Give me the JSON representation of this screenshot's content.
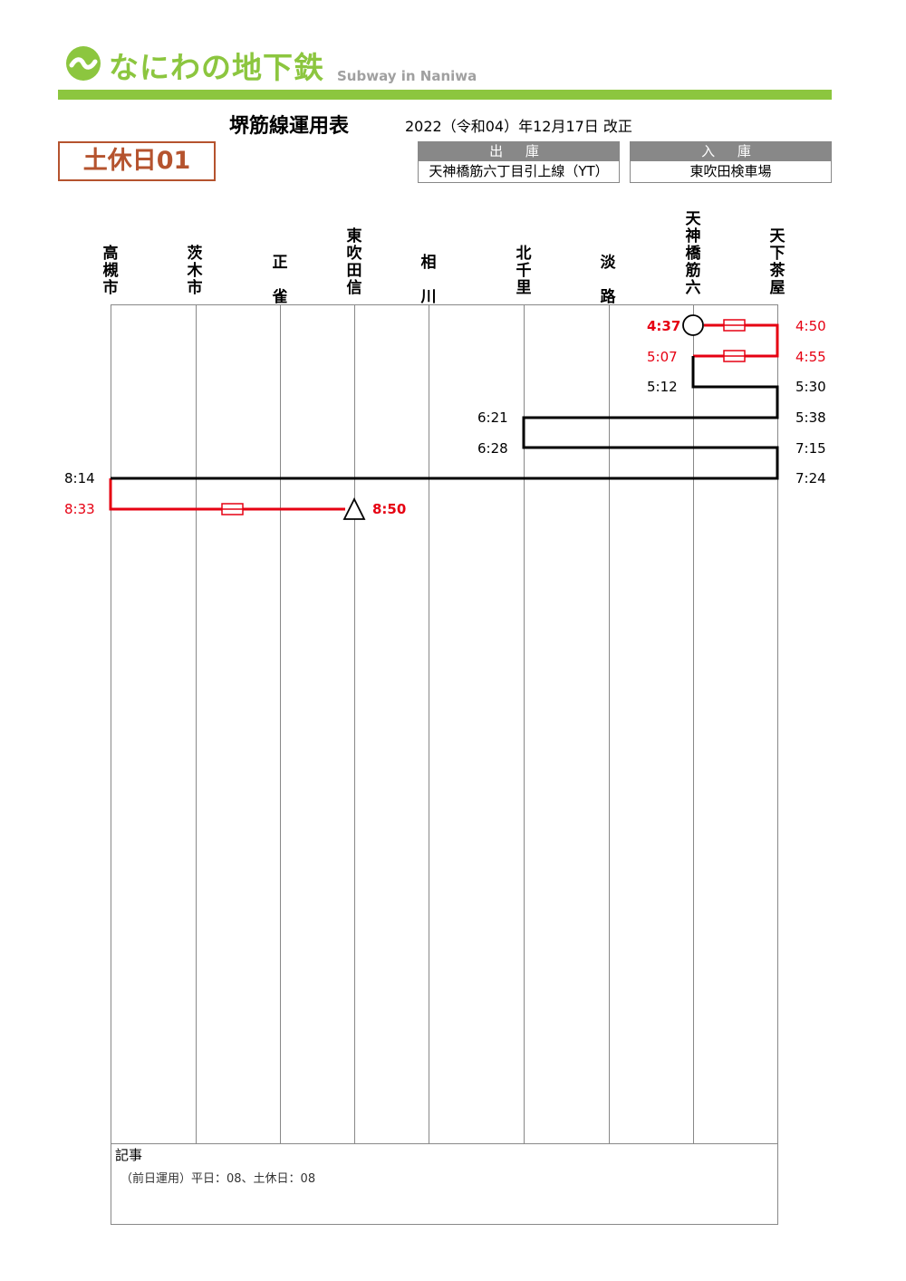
{
  "header": {
    "logo_text": "なにわの地下鉄",
    "logo_sub": "Subway in Naniwa",
    "brand_color": "#8cc63f",
    "logo_icon": "wave-circle-icon"
  },
  "title": "堺筋線運用表",
  "revision": "2022（令和04）年12月17日 改正",
  "operation_number": "土休日01",
  "depot": {
    "out_label": "出 庫",
    "out_value": "天神橋筋六丁目引上線（YT）",
    "in_label": "入 庫",
    "in_value": "東吹田検車場"
  },
  "stations": [
    "高槻市",
    "茨木市",
    "正雀",
    "東吹田信",
    "相川",
    "北千里",
    "淡路",
    "天神橋筋六",
    "天下茶屋"
  ],
  "times": [
    {
      "text": "4:37",
      "color": "#e60012",
      "bold": true
    },
    {
      "text": "4:50",
      "color": "#e60012",
      "bold": false
    },
    {
      "text": "5:07",
      "color": "#e60012",
      "bold": false
    },
    {
      "text": "4:55",
      "color": "#e60012",
      "bold": false
    },
    {
      "text": "5:12",
      "color": "#000000",
      "bold": false
    },
    {
      "text": "5:30",
      "color": "#000000",
      "bold": false
    },
    {
      "text": "6:21",
      "color": "#000000",
      "bold": false
    },
    {
      "text": "5:38",
      "color": "#000000",
      "bold": false
    },
    {
      "text": "6:28",
      "color": "#000000",
      "bold": false
    },
    {
      "text": "7:15",
      "color": "#000000",
      "bold": false
    },
    {
      "text": "8:14",
      "color": "#000000",
      "bold": false
    },
    {
      "text": "7:24",
      "color": "#000000",
      "bold": false
    },
    {
      "text": "8:33",
      "color": "#e60012",
      "bold": false
    },
    {
      "text": "8:50",
      "color": "#e60012",
      "bold": true
    }
  ],
  "colors": {
    "deadhead": "#e60012",
    "revenue": "#000000",
    "operation": "#b5532e"
  },
  "notes": {
    "title": "記事",
    "body": "（前日運用）平日：08、土休日：08"
  }
}
